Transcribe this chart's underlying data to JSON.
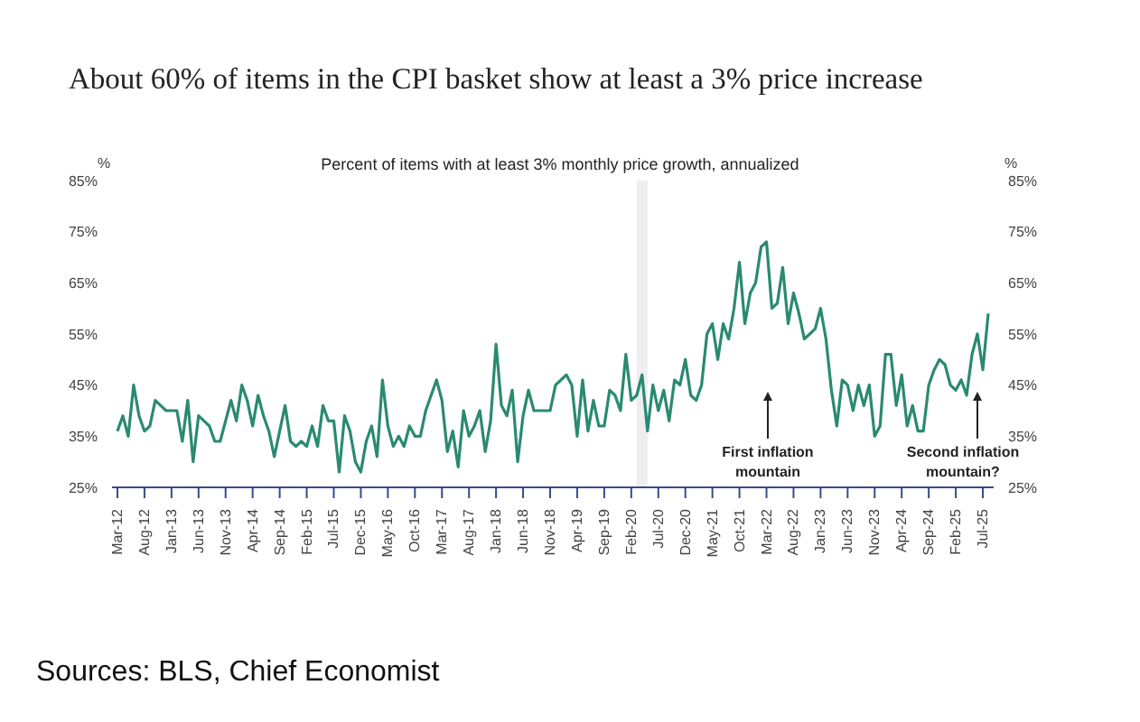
{
  "chart_data": {
    "type": "line",
    "title": "About 60% of items in the CPI basket show at least a 3% price increase",
    "subtitle": "Percent of items with at least 3% monthly price growth, annualized",
    "ylabel": "%",
    "y2label": "%",
    "x": [
      "2012-03",
      "2012-04",
      "2012-05",
      "2012-06",
      "2012-07",
      "2012-08",
      "2012-09",
      "2012-10",
      "2012-11",
      "2012-12",
      "2013-01",
      "2013-02",
      "2013-03",
      "2013-04",
      "2013-05",
      "2013-06",
      "2013-07",
      "2013-08",
      "2013-09",
      "2013-10",
      "2013-11",
      "2013-12",
      "2014-01",
      "2014-02",
      "2014-03",
      "2014-04",
      "2014-05",
      "2014-06",
      "2014-07",
      "2014-08",
      "2014-09",
      "2014-10",
      "2014-11",
      "2014-12",
      "2015-01",
      "2015-02",
      "2015-03",
      "2015-04",
      "2015-05",
      "2015-06",
      "2015-07",
      "2015-08",
      "2015-09",
      "2015-10",
      "2015-11",
      "2015-12",
      "2016-01",
      "2016-02",
      "2016-03",
      "2016-04",
      "2016-05",
      "2016-06",
      "2016-07",
      "2016-08",
      "2016-09",
      "2016-10",
      "2016-11",
      "2016-12",
      "2017-01",
      "2017-02",
      "2017-03",
      "2017-04",
      "2017-05",
      "2017-06",
      "2017-07",
      "2017-08",
      "2017-09",
      "2017-10",
      "2017-11",
      "2017-12",
      "2018-01",
      "2018-02",
      "2018-03",
      "2018-04",
      "2018-05",
      "2018-06",
      "2018-07",
      "2018-08",
      "2018-09",
      "2018-10",
      "2018-11",
      "2018-12",
      "2019-01",
      "2019-02",
      "2019-03",
      "2019-04",
      "2019-05",
      "2019-06",
      "2019-07",
      "2019-08",
      "2019-09",
      "2019-10",
      "2019-11",
      "2019-12",
      "2020-01",
      "2020-02",
      "2020-03",
      "2020-04",
      "2020-05",
      "2020-06",
      "2020-07",
      "2020-08",
      "2020-09",
      "2020-10",
      "2020-11",
      "2020-12",
      "2021-01",
      "2021-02",
      "2021-03",
      "2021-04",
      "2021-05",
      "2021-06",
      "2021-07",
      "2021-08",
      "2021-09",
      "2021-10",
      "2021-11",
      "2021-12",
      "2022-01",
      "2022-02",
      "2022-03",
      "2022-04",
      "2022-05",
      "2022-06",
      "2022-07",
      "2022-08",
      "2022-09",
      "2022-10",
      "2022-11",
      "2022-12",
      "2023-01",
      "2023-02",
      "2023-03",
      "2023-04",
      "2023-05",
      "2023-06",
      "2023-07",
      "2023-08",
      "2023-09",
      "2023-10",
      "2023-11",
      "2023-12",
      "2024-01",
      "2024-02",
      "2024-03",
      "2024-04",
      "2024-05",
      "2024-06",
      "2024-07",
      "2024-08",
      "2024-09",
      "2024-10",
      "2024-11",
      "2024-12",
      "2025-01",
      "2025-02",
      "2025-03",
      "2025-04",
      "2025-05",
      "2025-06",
      "2025-07",
      "2025-08"
    ],
    "series": [
      {
        "color": "#2a8a70",
        "values": [
          36,
          39,
          35,
          45,
          39,
          36,
          37,
          42,
          41,
          40,
          40,
          40,
          34,
          42,
          30,
          39,
          38,
          37,
          34,
          34,
          38,
          42,
          38,
          45,
          42,
          37,
          43,
          39,
          36,
          31,
          36,
          41,
          34,
          33,
          34,
          33,
          37,
          33,
          41,
          38,
          38,
          28,
          39,
          36,
          30,
          28,
          34,
          37,
          31,
          46,
          37,
          33,
          35,
          33,
          37,
          35,
          35,
          40,
          43,
          46,
          42,
          32,
          36,
          29,
          40,
          35,
          37,
          40,
          32,
          38,
          53,
          41,
          39,
          44,
          30,
          39,
          44,
          40,
          40,
          40,
          40,
          45,
          46,
          47,
          45,
          35,
          46,
          36,
          42,
          37,
          37,
          44,
          43,
          40,
          51,
          42,
          43,
          47,
          36,
          45,
          40,
          44,
          38,
          46,
          45,
          50,
          43,
          42,
          45,
          55,
          57,
          50,
          57,
          54,
          60,
          69,
          57,
          63,
          65,
          72,
          73,
          60,
          61,
          68,
          57,
          63,
          59,
          54,
          55,
          56,
          60,
          54,
          44,
          37,
          46,
          45,
          40,
          45,
          41,
          45,
          35,
          37,
          51,
          51,
          41,
          47,
          37,
          41,
          36,
          36,
          45,
          48,
          50,
          49,
          45,
          44,
          46,
          43,
          51,
          55,
          48,
          59
        ]
      }
    ],
    "xlim": [
      "2012-02",
      "2025-09"
    ],
    "xticks": [
      {
        "value": "2012-03",
        "label": "Mar-12"
      },
      {
        "value": "2012-08",
        "label": "Aug-12"
      },
      {
        "value": "2013-01",
        "label": "Jan-13"
      },
      {
        "value": "2013-06",
        "label": "Jun-13"
      },
      {
        "value": "2013-11",
        "label": "Nov-13"
      },
      {
        "value": "2014-04",
        "label": "Apr-14"
      },
      {
        "value": "2014-09",
        "label": "Sep-14"
      },
      {
        "value": "2015-02",
        "label": "Feb-15"
      },
      {
        "value": "2015-07",
        "label": "Jul-15"
      },
      {
        "value": "2015-12",
        "label": "Dec-15"
      },
      {
        "value": "2016-05",
        "label": "May-16"
      },
      {
        "value": "2016-10",
        "label": "Oct-16"
      },
      {
        "value": "2017-03",
        "label": "Mar-17"
      },
      {
        "value": "2017-08",
        "label": "Aug-17"
      },
      {
        "value": "2018-01",
        "label": "Jan-18"
      },
      {
        "value": "2018-06",
        "label": "Jun-18"
      },
      {
        "value": "2018-11",
        "label": "Nov-18"
      },
      {
        "value": "2019-04",
        "label": "Apr-19"
      },
      {
        "value": "2019-09",
        "label": "Sep-19"
      },
      {
        "value": "2020-02",
        "label": "Feb-20"
      },
      {
        "value": "2020-07",
        "label": "Jul-20"
      },
      {
        "value": "2020-12",
        "label": "Dec-20"
      },
      {
        "value": "2021-05",
        "label": "May-21"
      },
      {
        "value": "2021-10",
        "label": "Oct-21"
      },
      {
        "value": "2022-03",
        "label": "Mar-22"
      },
      {
        "value": "2022-08",
        "label": "Aug-22"
      },
      {
        "value": "2023-01",
        "label": "Jan-23"
      },
      {
        "value": "2023-06",
        "label": "Jun-23"
      },
      {
        "value": "2023-11",
        "label": "Nov-23"
      },
      {
        "value": "2024-04",
        "label": "Apr-24"
      },
      {
        "value": "2024-09",
        "label": "Sep-24"
      },
      {
        "value": "2025-02",
        "label": "Feb-25"
      },
      {
        "value": "2025-07",
        "label": "Jul-25"
      }
    ],
    "ylim": [
      25,
      85
    ],
    "yticks": [
      {
        "value": 25,
        "label": "25%"
      },
      {
        "value": 35,
        "label": "35%"
      },
      {
        "value": 45,
        "label": "45%"
      },
      {
        "value": 55,
        "label": "55%"
      },
      {
        "value": 65,
        "label": "65%"
      },
      {
        "value": 75,
        "label": "75%"
      },
      {
        "value": 85,
        "label": "85%"
      }
    ],
    "y2lim": [
      25,
      85
    ],
    "y2ticks": [
      {
        "value": 25,
        "label": "25%"
      },
      {
        "value": 35,
        "label": "35%"
      },
      {
        "value": 45,
        "label": "45%"
      },
      {
        "value": 55,
        "label": "55%"
      },
      {
        "value": 65,
        "label": "65%"
      },
      {
        "value": 75,
        "label": "75%"
      },
      {
        "value": 85,
        "label": "85%"
      }
    ],
    "bands": [
      {
        "axis": "x",
        "from": "2020-03",
        "to": "2020-05",
        "color": "#eeeeee"
      }
    ],
    "annotations": [
      "First inflation mountain",
      "Second inflation mountain?",
      "Sources: BLS, Chief Economist"
    ],
    "marker": "none",
    "line_style": "solid"
  }
}
